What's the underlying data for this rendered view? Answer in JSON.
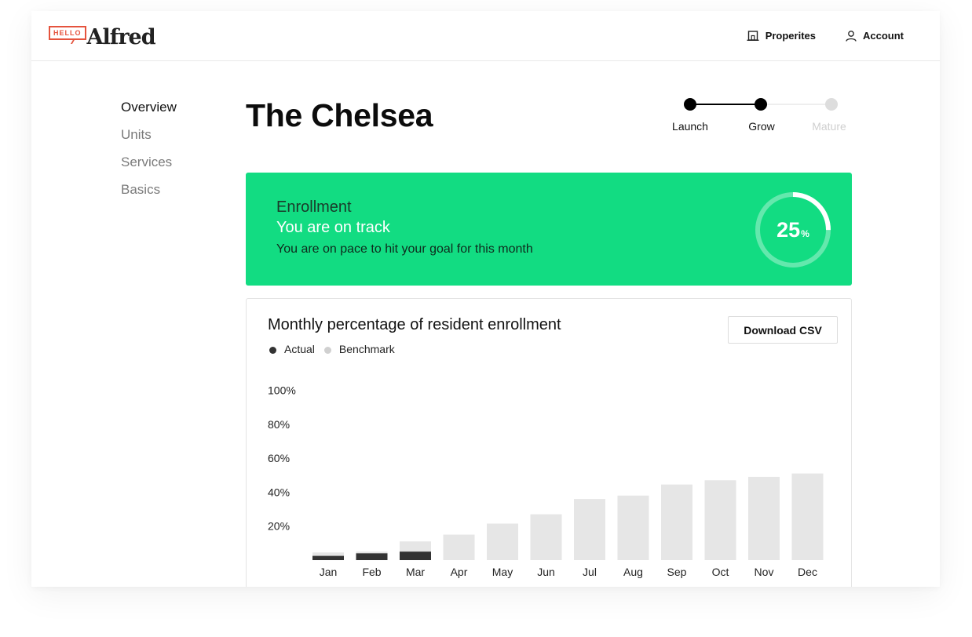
{
  "header": {
    "logo_badge": "HELLO",
    "logo_word": "Alfred",
    "nav": [
      {
        "label": "Properites",
        "icon": "building-icon"
      },
      {
        "label": "Account",
        "icon": "user-icon"
      }
    ]
  },
  "sidebar": {
    "items": [
      {
        "label": "Overview",
        "active": true
      },
      {
        "label": "Units",
        "active": false
      },
      {
        "label": "Services",
        "active": false
      },
      {
        "label": "Basics",
        "active": false
      }
    ]
  },
  "page": {
    "title": "The Chelsea"
  },
  "stepper": {
    "steps": [
      {
        "label": "Launch",
        "state": "done"
      },
      {
        "label": "Grow",
        "state": "current"
      },
      {
        "label": "Mature",
        "state": "upcoming"
      }
    ]
  },
  "banner": {
    "kicker": "Enrollment",
    "title": "You are on track",
    "description": "You are on pace to hit your goal for this month",
    "percent": 25,
    "percent_unit": "%",
    "color": "#12dc82"
  },
  "chart_card": {
    "title": "Monthly percentage of resident enrollment",
    "download_label": "Download CSV"
  },
  "colors": {
    "actual": "#333333",
    "benchmark": "#e6e6e6",
    "stepper_done": "#000000",
    "stepper_upcoming": "#dddddd"
  },
  "chart_data": {
    "type": "bar",
    "categories": [
      "Jan",
      "Feb",
      "Mar",
      "Apr",
      "May",
      "Jun",
      "Jul",
      "Aug",
      "Sep",
      "Oct",
      "Nov",
      "Dec"
    ],
    "series": [
      {
        "name": "Actual",
        "values": [
          2.5,
          4,
          5,
          null,
          null,
          null,
          null,
          null,
          null,
          null,
          null,
          null
        ]
      },
      {
        "name": "Benchmark",
        "values": [
          4.5,
          5,
          11,
          15,
          21.5,
          27,
          36,
          38,
          44.5,
          47,
          49,
          51
        ]
      }
    ],
    "y_ticks": [
      "20%",
      "40%",
      "60%",
      "80%",
      "100%"
    ],
    "xlabel": "",
    "ylabel": "",
    "legend_position": "top-left"
  }
}
